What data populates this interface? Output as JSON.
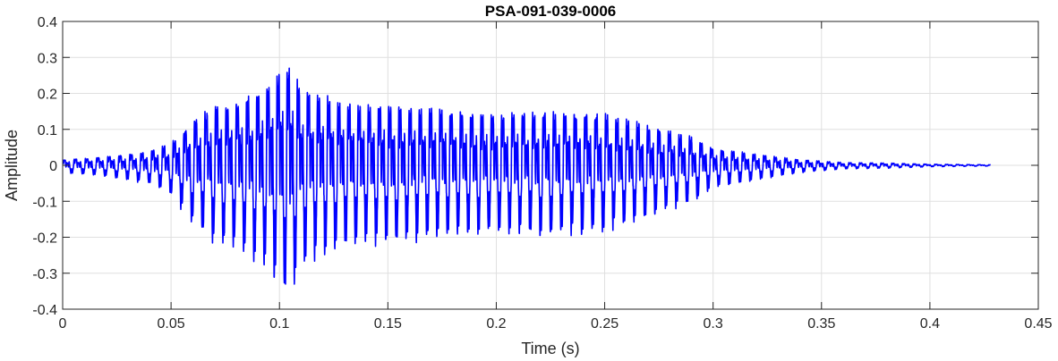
{
  "chart_data": {
    "type": "line",
    "title": "PSA-091-039-0006",
    "xlabel": "Time (s)",
    "ylabel": "Amplitude",
    "xlim": [
      0,
      0.45
    ],
    "ylim": [
      -0.4,
      0.4
    ],
    "xticks": [
      0,
      0.05,
      0.1,
      0.15,
      0.2,
      0.25,
      0.3,
      0.35,
      0.4,
      0.45
    ],
    "yticks": [
      -0.4,
      -0.3,
      -0.2,
      -0.1,
      0,
      0.1,
      0.2,
      0.3,
      0.4
    ],
    "xtick_labels": [
      "0",
      "0.05",
      "0.1",
      "0.15",
      "0.2",
      "0.25",
      "0.3",
      "0.35",
      "0.4",
      "0.45"
    ],
    "ytick_labels": [
      "-0.4",
      "-0.3",
      "-0.2",
      "-0.1",
      "0",
      "0.1",
      "0.2",
      "0.3",
      "0.4"
    ],
    "grid": true,
    "series": [
      {
        "color": "#0000ff",
        "duration": 0.428,
        "envelope": [
          [
            0.0,
            0.02
          ],
          [
            0.02,
            0.03
          ],
          [
            0.04,
            0.05
          ],
          [
            0.05,
            0.08
          ],
          [
            0.06,
            0.16
          ],
          [
            0.07,
            0.21
          ],
          [
            0.08,
            0.22
          ],
          [
            0.09,
            0.26
          ],
          [
            0.1,
            0.33
          ],
          [
            0.105,
            0.35
          ],
          [
            0.11,
            0.27
          ],
          [
            0.13,
            0.22
          ],
          [
            0.15,
            0.21
          ],
          [
            0.17,
            0.2
          ],
          [
            0.2,
            0.18
          ],
          [
            0.22,
            0.19
          ],
          [
            0.25,
            0.18
          ],
          [
            0.27,
            0.14
          ],
          [
            0.29,
            0.1
          ],
          [
            0.3,
            0.06
          ],
          [
            0.32,
            0.04
          ],
          [
            0.34,
            0.02
          ],
          [
            0.36,
            0.01
          ],
          [
            0.38,
            0.008
          ],
          [
            0.4,
            0.004
          ],
          [
            0.428,
            0.002
          ]
        ],
        "pitch_hz": [
          [
            0.0,
            190
          ],
          [
            0.1,
            215
          ],
          [
            0.2,
            210
          ],
          [
            0.3,
            205
          ],
          [
            0.428,
            200
          ]
        ]
      }
    ]
  }
}
